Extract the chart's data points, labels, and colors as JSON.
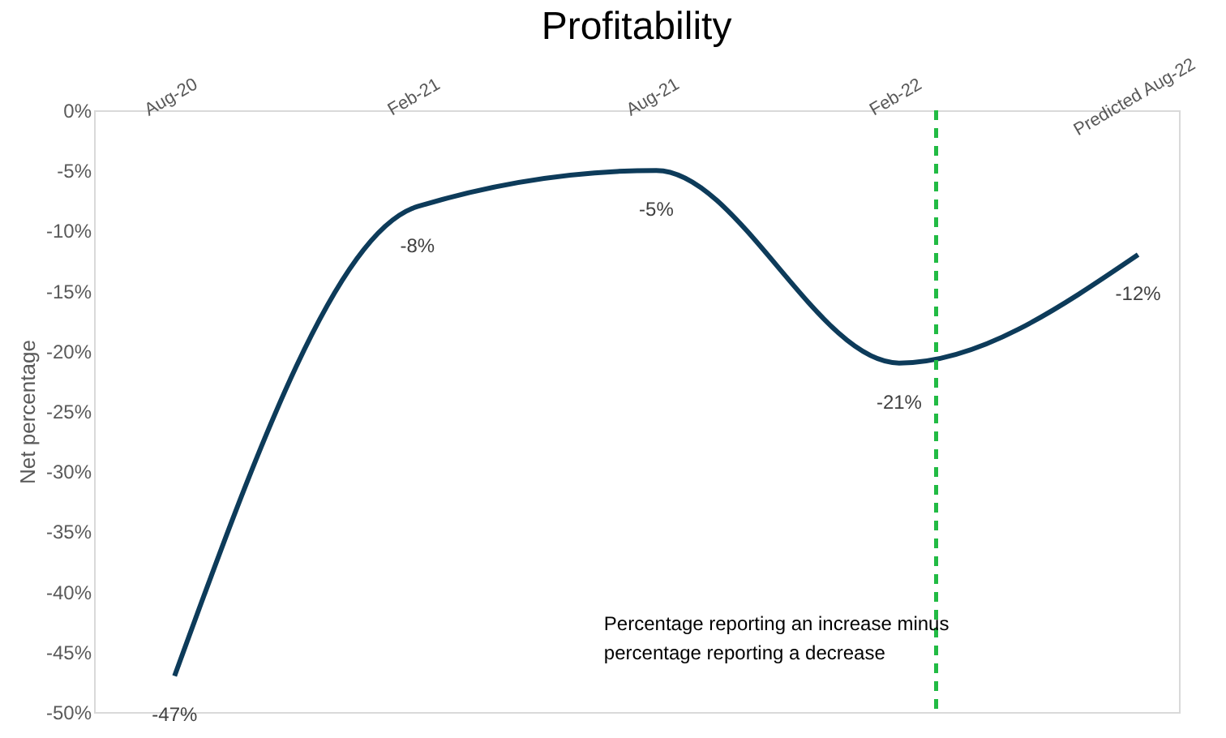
{
  "chart_data": {
    "type": "line",
    "title": "Profitability",
    "ylabel": "Net percentage",
    "x": [
      "2020-08",
      "2021-02",
      "2021-08",
      "2022-02",
      "2022-08"
    ],
    "xticks": [
      {
        "value": "2020-08",
        "label": "Aug-20"
      },
      {
        "value": "2021-02",
        "label": "Feb-21"
      },
      {
        "value": "2021-08",
        "label": "Aug-21"
      },
      {
        "value": "2022-02",
        "label": "Feb-22"
      },
      {
        "value": "2022-08",
        "label": "Predicted Aug-22"
      }
    ],
    "xlim": [
      "2020-06",
      "2022-09"
    ],
    "series": [
      {
        "color": "#0d3b5a",
        "values": [
          -47,
          -8,
          -5,
          -21,
          -12
        ],
        "value_labels": [
          "-47%",
          "-8%",
          "-5%",
          "-21%",
          "-12%"
        ]
      }
    ],
    "ylim": [
      -50,
      0
    ],
    "yticks": [
      {
        "value": 0,
        "label": "0%"
      },
      {
        "value": -5,
        "label": "-5%"
      },
      {
        "value": -10,
        "label": "-10%"
      },
      {
        "value": -15,
        "label": "-15%"
      },
      {
        "value": -20,
        "label": "-20%"
      },
      {
        "value": -25,
        "label": "-25%"
      },
      {
        "value": -30,
        "label": "-30%"
      },
      {
        "value": -35,
        "label": "-35%"
      },
      {
        "value": -40,
        "label": "-40%"
      },
      {
        "value": -45,
        "label": "-45%"
      },
      {
        "value": -50,
        "label": "-50%"
      }
    ],
    "ref_lines": [
      {
        "axis": "x",
        "value": "2022-03",
        "color": "#22bb44",
        "line_style": "dashed"
      }
    ],
    "annotations": [
      "Percentage reporting an increase minus\npercentage reporting a decrease"
    ],
    "grid": false,
    "legend": false,
    "marker": "none",
    "line_style": "solid"
  }
}
